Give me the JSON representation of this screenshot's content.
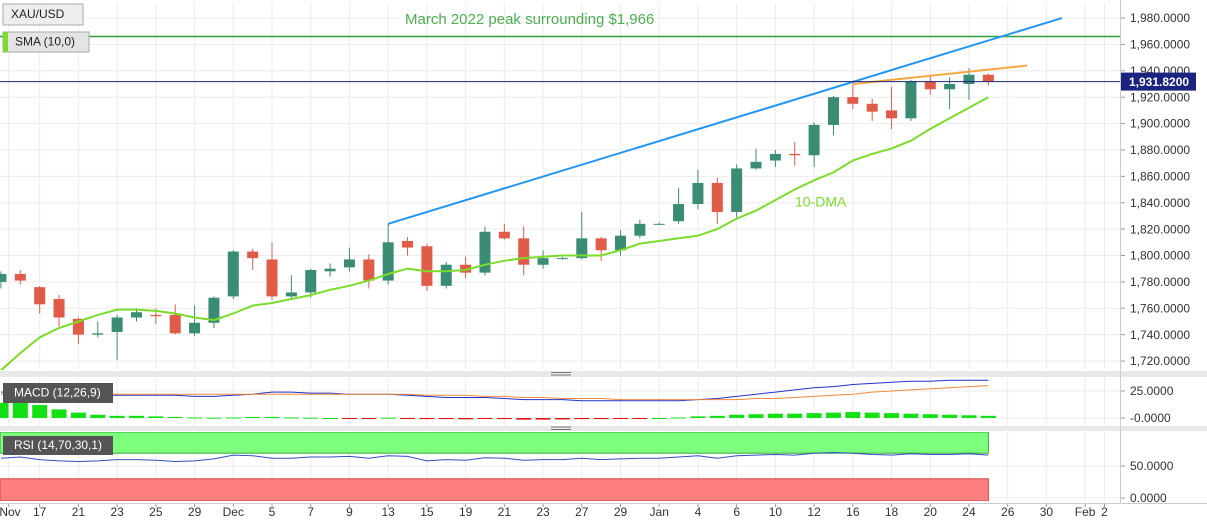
{
  "chart_data": [
    {
      "type": "candlestick",
      "title": "XAU/USD",
      "x": [
        0,
        1,
        2,
        3,
        4,
        5,
        6,
        7,
        8,
        9,
        10,
        11,
        12,
        13,
        14,
        15,
        16,
        17,
        18,
        19,
        20,
        21,
        22,
        23,
        24,
        25,
        26,
        27,
        28,
        29,
        30,
        31,
        32,
        33,
        34,
        35,
        36,
        37,
        38,
        39,
        40,
        41,
        42,
        43,
        44,
        45,
        46,
        47,
        48,
        49,
        50,
        51
      ],
      "open": [
        1780,
        1786,
        1776,
        1767,
        1752,
        1740,
        1742,
        1753,
        1755,
        1755,
        1741,
        1749,
        1769,
        1803,
        1797,
        1769,
        1772,
        1788,
        1791,
        1797,
        1781,
        1811,
        1807,
        1777,
        1793,
        1787,
        1818,
        1813,
        1793,
        1798,
        1798,
        1813,
        1804,
        1815,
        1824,
        1826,
        1839,
        1855,
        1833,
        1866,
        1872,
        1877,
        1876,
        1899,
        1920,
        1915,
        1910,
        1904,
        1932,
        1926,
        1930,
        1937
      ],
      "high": [
        1788,
        1789,
        1777,
        1770,
        1753,
        1750,
        1755,
        1760,
        1760,
        1763,
        1762,
        1769,
        1804,
        1805,
        1810,
        1785,
        1790,
        1794,
        1806,
        1801,
        1824,
        1814,
        1809,
        1795,
        1799,
        1822,
        1824,
        1822,
        1804,
        1799,
        1833,
        1814,
        1819,
        1827,
        1825,
        1851,
        1865,
        1859,
        1869,
        1881,
        1880,
        1886,
        1901,
        1921,
        1930,
        1919,
        1928,
        1933,
        1937,
        1935,
        1942,
        1938
      ],
      "low": [
        1775,
        1778,
        1756,
        1746,
        1733,
        1738,
        1721,
        1750,
        1748,
        1740,
        1739,
        1745,
        1767,
        1789,
        1766,
        1767,
        1768,
        1784,
        1788,
        1775,
        1778,
        1800,
        1773,
        1775,
        1783,
        1785,
        1812,
        1785,
        1790,
        1797,
        1797,
        1796,
        1800,
        1813,
        1823,
        1824,
        1835,
        1824,
        1829,
        1865,
        1867,
        1868,
        1867,
        1891,
        1911,
        1902,
        1896,
        1902,
        1922,
        1911,
        1918,
        1929
      ],
      "close": [
        1786,
        1781,
        1763,
        1753,
        1740,
        1741,
        1753,
        1757,
        1754,
        1741,
        1749,
        1768,
        1803,
        1798,
        1769,
        1772,
        1789,
        1790,
        1797,
        1781,
        1810,
        1806,
        1777,
        1793,
        1787,
        1818,
        1813,
        1793,
        1798,
        1798,
        1813,
        1804,
        1815,
        1824,
        1824,
        1839,
        1855,
        1833,
        1866,
        1871,
        1877,
        1876,
        1899,
        1920,
        1915,
        1909,
        1904,
        1932,
        1926,
        1930,
        1937,
        1931.82
      ],
      "up_color": "#3b8c74",
      "down_color": "#e05b48",
      "series": [
        {
          "name": "SMA (10,0)",
          "color": "#7bdc2a",
          "values": [
            1713,
            1726,
            1738,
            1745,
            1750,
            1755,
            1759,
            1759,
            1758,
            1756,
            1753,
            1751,
            1756,
            1762,
            1764,
            1767,
            1770,
            1774,
            1777,
            1781,
            1786,
            1790,
            1788,
            1788,
            1789,
            1793,
            1796,
            1798,
            1799,
            1800,
            1800,
            1800,
            1804,
            1809,
            1811,
            1813,
            1815,
            1820,
            1828,
            1834,
            1842,
            1850,
            1857,
            1863,
            1872,
            1877,
            1881,
            1887,
            1896,
            1904,
            1912,
            1920
          ]
        }
      ],
      "xlim": [
        -0.05,
        57.8
      ],
      "xticks": [
        {
          "value": 0.4,
          "label": "Nov"
        },
        {
          "value": 2,
          "label": "17"
        },
        {
          "value": 4,
          "label": "21"
        },
        {
          "value": 6,
          "label": "23"
        },
        {
          "value": 8,
          "label": "25"
        },
        {
          "value": 10,
          "label": "29"
        },
        {
          "value": 12,
          "label": "Dec"
        },
        {
          "value": 14,
          "label": "5"
        },
        {
          "value": 16,
          "label": "7"
        },
        {
          "value": 18,
          "label": "9"
        },
        {
          "value": 20,
          "label": "13"
        },
        {
          "value": 22,
          "label": "15"
        },
        {
          "value": 24,
          "label": "19"
        },
        {
          "value": 26,
          "label": "21"
        },
        {
          "value": 28,
          "label": "23"
        },
        {
          "value": 30,
          "label": "27"
        },
        {
          "value": 32,
          "label": "29"
        },
        {
          "value": 34,
          "label": "Jan"
        },
        {
          "value": 36,
          "label": "4"
        },
        {
          "value": 38,
          "label": "6"
        },
        {
          "value": 40,
          "label": "10"
        },
        {
          "value": 42,
          "label": "12"
        },
        {
          "value": 44,
          "label": "16"
        },
        {
          "value": 46,
          "label": "18"
        },
        {
          "value": 48,
          "label": "20"
        },
        {
          "value": 50,
          "label": "24"
        },
        {
          "value": 52,
          "label": "26"
        },
        {
          "value": 54,
          "label": "30"
        },
        {
          "value": 56,
          "label": "Feb"
        },
        {
          "value": 57,
          "label": "2"
        }
      ],
      "ylim": [
        1713.2,
        1991.4
      ],
      "yticks": [
        {
          "value": 1980,
          "label": "1,980.0000"
        },
        {
          "value": 1960,
          "label": "1,960.0000"
        },
        {
          "value": 1940,
          "label": "1,940.0000"
        },
        {
          "value": 1920,
          "label": "1,920.0000"
        },
        {
          "value": 1900,
          "label": "1,900.0000"
        },
        {
          "value": 1880,
          "label": "1,880.0000"
        },
        {
          "value": 1860,
          "label": "1,860.0000"
        },
        {
          "value": 1840,
          "label": "1,840.0000"
        },
        {
          "value": 1820,
          "label": "1,820.0000"
        },
        {
          "value": 1800,
          "label": "1,800.0000"
        },
        {
          "value": 1780,
          "label": "1,780.0000"
        },
        {
          "value": 1760,
          "label": "1,760.0000"
        },
        {
          "value": 1740,
          "label": "1,740.0000"
        },
        {
          "value": 1720,
          "label": "1,720.0000"
        }
      ],
      "grid": true,
      "last_price": {
        "value": 1931.82,
        "label": "1,931.8200",
        "color": "#1a237e"
      },
      "levels": [
        {
          "value": 1966,
          "color": "#2e9e3e"
        }
      ],
      "trendlines": [
        {
          "x": [
            20,
            54.8
          ],
          "y": [
            1824,
            1980
          ],
          "color": "#2196f3"
        },
        {
          "x": [
            44,
            53
          ],
          "y": [
            1930,
            1944
          ],
          "color": "#f5a742"
        }
      ],
      "annotations": [
        {
          "text": "March 2022 peak surrounding $1,966",
          "color": "#4caf50"
        },
        {
          "text": "10-DMA",
          "color": "#7bdc2a"
        }
      ]
    },
    {
      "type": "macd",
      "title": "MACD (12,26,9)",
      "lines": [
        {
          "color": "#2233cc",
          "values": [
            24,
            24,
            23,
            22,
            21,
            21,
            21,
            21,
            21,
            21,
            20,
            20,
            21,
            22,
            24,
            24,
            23,
            23,
            22,
            22,
            22,
            21,
            20,
            19,
            19,
            19,
            18,
            17,
            17,
            17,
            16,
            16,
            16,
            16,
            16,
            16,
            17,
            18,
            20,
            22,
            24,
            26,
            28,
            29,
            31,
            32,
            33,
            34,
            34,
            35,
            35,
            35
          ]
        },
        {
          "color": "#f08a3c",
          "values": [
            22,
            22,
            22,
            22,
            22,
            22,
            22,
            22,
            22,
            22,
            22,
            22,
            22,
            22,
            22,
            22,
            22,
            22,
            22,
            22,
            22,
            22,
            21,
            21,
            21,
            20,
            20,
            19,
            19,
            18,
            18,
            18,
            17,
            17,
            17,
            17,
            17,
            17,
            17,
            18,
            18,
            19,
            20,
            21,
            22,
            24,
            25,
            26,
            27,
            28,
            29,
            30
          ]
        }
      ],
      "histogram": {
        "up_color": "#14e014",
        "down_color": "#e01414",
        "values": [
          14,
          14,
          12,
          8,
          5,
          3,
          2,
          2,
          1.5,
          1,
          0.5,
          0.3,
          0.5,
          1,
          1,
          0.5,
          0.3,
          0,
          -0.3,
          -0.5,
          0.3,
          -0.3,
          -1,
          -1,
          -1.2,
          -0.8,
          -1,
          -1.5,
          -1.5,
          -1.3,
          -1,
          -1,
          -0.8,
          -0.5,
          0,
          0.5,
          1.5,
          2,
          3,
          3.5,
          4,
          4,
          4.5,
          5,
          5.5,
          5,
          4.5,
          4,
          3.5,
          3,
          2.5,
          2
        ]
      },
      "ylim": [
        -7.4,
        37
      ],
      "yticks": [
        {
          "value": 25,
          "label": "25.0000"
        },
        {
          "value": 0,
          "label": "-0.0000"
        }
      ],
      "grid": true
    },
    {
      "type": "rsi",
      "title": "RSI (14,70,30,1)",
      "color": "#3050c0",
      "values": [
        62,
        64,
        60,
        58,
        57,
        58,
        60,
        60,
        59,
        57,
        58,
        61,
        67,
        66,
        62,
        62,
        64,
        64,
        65,
        62,
        66,
        65,
        58,
        60,
        59,
        63,
        62,
        59,
        60,
        60,
        62,
        60,
        61,
        62,
        62,
        64,
        66,
        62,
        66,
        67,
        68,
        67,
        70,
        71,
        70,
        68,
        67,
        69,
        68,
        68,
        69,
        67
      ],
      "overbought": 70,
      "oversold": 30,
      "overbought_color": "#7dff7d",
      "oversold_color": "#ff7f7f",
      "ylim": [
        -4.7,
        103.1
      ],
      "yticks": [
        {
          "value": 50,
          "label": "50.0000"
        },
        {
          "value": 0,
          "label": "0.0000"
        }
      ],
      "grid": true
    }
  ]
}
